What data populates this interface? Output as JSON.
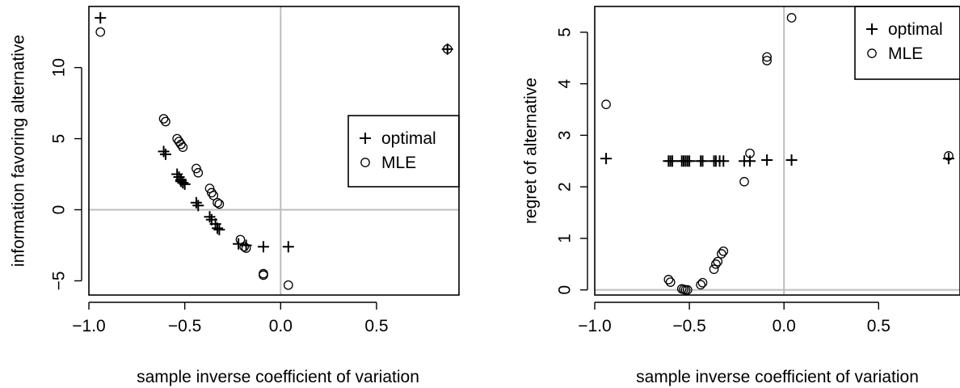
{
  "chart_data": [
    {
      "type": "scatter",
      "xlabel": "sample inverse coefficient of variation",
      "ylabel": "information favoring alternative",
      "xlim": [
        -1.0,
        0.93
      ],
      "ylim": [
        -6.0,
        14.3
      ],
      "xticks": [
        -1.0,
        -0.5,
        0.0,
        0.5
      ],
      "xtick_labels": [
        "−1.0",
        "−0.5",
        "0.0",
        "0.5"
      ],
      "yticks": [
        -5,
        0,
        5,
        10
      ],
      "ytick_labels": [
        "−5",
        "0",
        "5",
        "10"
      ],
      "reference_lines": {
        "x": 0,
        "y": 0
      },
      "legend": {
        "position": "right",
        "entries": [
          {
            "label": "optimal",
            "marker": "plus"
          },
          {
            "label": "MLE",
            "marker": "circle"
          }
        ]
      },
      "series": [
        {
          "name": "optimal",
          "marker": "plus",
          "points": [
            [
              -0.94,
              13.5
            ],
            [
              -0.61,
              4.1
            ],
            [
              -0.6,
              3.9
            ],
            [
              -0.54,
              2.5
            ],
            [
              -0.53,
              2.3
            ],
            [
              -0.52,
              2.1
            ],
            [
              -0.52,
              2.0
            ],
            [
              -0.51,
              1.9
            ],
            [
              -0.5,
              1.8
            ],
            [
              -0.44,
              0.5
            ],
            [
              -0.43,
              0.3
            ],
            [
              -0.37,
              -0.5
            ],
            [
              -0.36,
              -0.7
            ],
            [
              -0.34,
              -1.0
            ],
            [
              -0.33,
              -1.3
            ],
            [
              -0.32,
              -1.4
            ],
            [
              -0.22,
              -2.4
            ],
            [
              -0.18,
              -2.5
            ],
            [
              -0.09,
              -2.6
            ],
            [
              0.04,
              -2.6
            ],
            [
              0.87,
              11.3
            ]
          ]
        },
        {
          "name": "MLE",
          "marker": "circle",
          "points": [
            [
              -0.94,
              12.5
            ],
            [
              -0.61,
              6.4
            ],
            [
              -0.6,
              6.2
            ],
            [
              -0.54,
              5.0
            ],
            [
              -0.53,
              4.8
            ],
            [
              -0.52,
              4.6
            ],
            [
              -0.51,
              4.4
            ],
            [
              -0.44,
              2.9
            ],
            [
              -0.43,
              2.6
            ],
            [
              -0.37,
              1.5
            ],
            [
              -0.36,
              1.2
            ],
            [
              -0.35,
              1.0
            ],
            [
              -0.33,
              0.5
            ],
            [
              -0.32,
              0.4
            ],
            [
              -0.21,
              -2.1
            ],
            [
              -0.19,
              -2.6
            ],
            [
              -0.18,
              -2.7
            ],
            [
              -0.09,
              -4.5
            ],
            [
              -0.09,
              -4.6
            ],
            [
              0.04,
              -5.3
            ],
            [
              0.87,
              11.3
            ]
          ]
        }
      ]
    },
    {
      "type": "scatter",
      "xlabel": "sample inverse coefficient of variation",
      "ylabel": "regret of alternative",
      "xlim": [
        -1.0,
        0.93
      ],
      "ylim": [
        -0.1,
        5.5
      ],
      "xticks": [
        -1.0,
        -0.5,
        0.0,
        0.5
      ],
      "xtick_labels": [
        "−1.0",
        "−0.5",
        "0.0",
        "0.5"
      ],
      "yticks": [
        0,
        1,
        2,
        3,
        4,
        5
      ],
      "ytick_labels": [
        "0",
        "1",
        "2",
        "3",
        "4",
        "5"
      ],
      "reference_lines": {
        "x": 0,
        "y": 0
      },
      "legend": {
        "position": "top-right",
        "entries": [
          {
            "label": "optimal",
            "marker": "plus"
          },
          {
            "label": "MLE",
            "marker": "circle"
          }
        ]
      },
      "series": [
        {
          "name": "optimal",
          "marker": "plus",
          "points": [
            [
              -0.94,
              2.55
            ],
            [
              -0.61,
              2.5
            ],
            [
              -0.6,
              2.5
            ],
            [
              -0.59,
              2.5
            ],
            [
              -0.54,
              2.5
            ],
            [
              -0.53,
              2.5
            ],
            [
              -0.52,
              2.5
            ],
            [
              -0.51,
              2.5
            ],
            [
              -0.5,
              2.5
            ],
            [
              -0.44,
              2.5
            ],
            [
              -0.43,
              2.5
            ],
            [
              -0.37,
              2.5
            ],
            [
              -0.36,
              2.5
            ],
            [
              -0.34,
              2.5
            ],
            [
              -0.32,
              2.5
            ],
            [
              -0.21,
              2.5
            ],
            [
              -0.18,
              2.5
            ],
            [
              -0.09,
              2.52
            ],
            [
              0.04,
              2.52
            ],
            [
              0.87,
              2.55
            ]
          ]
        },
        {
          "name": "MLE",
          "marker": "circle",
          "points": [
            [
              -0.94,
              3.6
            ],
            [
              -0.61,
              0.2
            ],
            [
              -0.6,
              0.15
            ],
            [
              -0.54,
              0.02
            ],
            [
              -0.53,
              0.01
            ],
            [
              -0.52,
              0.0
            ],
            [
              -0.51,
              0.0
            ],
            [
              -0.44,
              0.1
            ],
            [
              -0.43,
              0.14
            ],
            [
              -0.37,
              0.4
            ],
            [
              -0.36,
              0.5
            ],
            [
              -0.35,
              0.55
            ],
            [
              -0.33,
              0.7
            ],
            [
              -0.32,
              0.75
            ],
            [
              -0.21,
              2.1
            ],
            [
              -0.18,
              2.65
            ],
            [
              -0.09,
              4.45
            ],
            [
              -0.09,
              4.52
            ],
            [
              0.04,
              5.28
            ],
            [
              0.87,
              2.6
            ]
          ]
        }
      ]
    }
  ]
}
